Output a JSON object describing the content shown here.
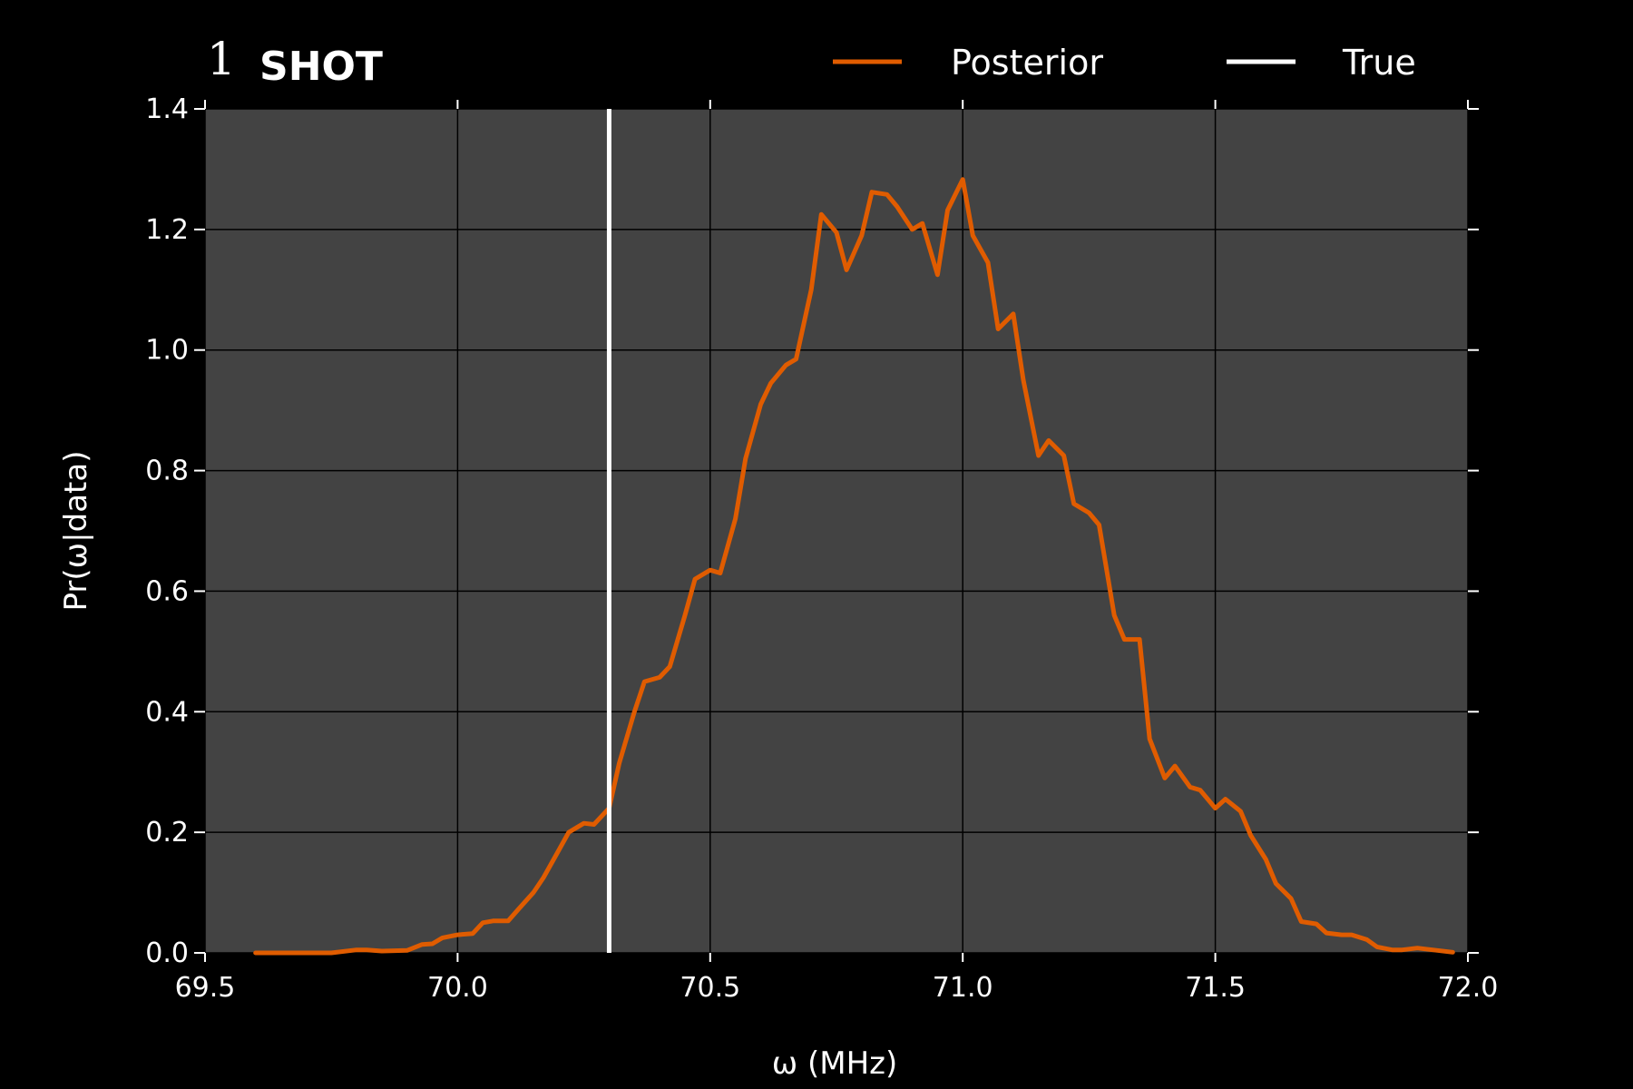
{
  "chart_data": {
    "type": "line",
    "title_number": "1",
    "title_word": "SHOT",
    "xlabel": "ω (MHz)",
    "ylabel": "Pr(ω|data)",
    "xlim": [
      69.5,
      72.0
    ],
    "ylim": [
      0.0,
      1.4
    ],
    "xticks": [
      "69.5",
      "70.0",
      "70.5",
      "71.0",
      "71.5",
      "72.0"
    ],
    "yticks": [
      "0.0",
      "0.2",
      "0.4",
      "0.6",
      "0.8",
      "1.0",
      "1.2",
      "1.4"
    ],
    "grid": true,
    "legend_placement": "top-right",
    "colors": {
      "posterior": "#e05c00",
      "true": "#ffffff",
      "plot_bg": "#434343",
      "figure_bg": "#000000"
    },
    "series": [
      {
        "name": "Posterior",
        "x": [
          69.6,
          69.65,
          69.7,
          69.75,
          69.8,
          69.82,
          69.85,
          69.9,
          69.93,
          69.95,
          69.97,
          70.0,
          70.03,
          70.05,
          70.07,
          70.1,
          70.12,
          70.15,
          70.17,
          70.2,
          70.22,
          70.25,
          70.27,
          70.3,
          70.32,
          70.35,
          70.37,
          70.4,
          70.42,
          70.45,
          70.47,
          70.5,
          70.52,
          70.55,
          70.57,
          70.6,
          70.62,
          70.65,
          70.67,
          70.7,
          70.72,
          70.75,
          70.77,
          70.8,
          70.82,
          70.85,
          70.87,
          70.9,
          70.92,
          70.95,
          70.97,
          71.0,
          71.02,
          71.05,
          71.07,
          71.1,
          71.12,
          71.15,
          71.17,
          71.2,
          71.22,
          71.25,
          71.27,
          71.3,
          71.32,
          71.35,
          71.37,
          71.4,
          71.42,
          71.45,
          71.47,
          71.5,
          71.52,
          71.55,
          71.57,
          71.6,
          71.62,
          71.65,
          71.67,
          71.7,
          71.72,
          71.75,
          71.77,
          71.8,
          71.82,
          71.85,
          71.87,
          71.9,
          71.97
        ],
        "y": [
          0.0,
          0.0,
          0.0,
          0.0,
          0.005,
          0.005,
          0.003,
          0.004,
          0.014,
          0.015,
          0.025,
          0.03,
          0.032,
          0.05,
          0.053,
          0.053,
          0.072,
          0.1,
          0.125,
          0.17,
          0.2,
          0.215,
          0.213,
          0.24,
          0.315,
          0.4,
          0.45,
          0.457,
          0.475,
          0.56,
          0.62,
          0.635,
          0.63,
          0.72,
          0.82,
          0.91,
          0.945,
          0.975,
          0.985,
          1.1,
          1.225,
          1.195,
          1.133,
          1.19,
          1.262,
          1.258,
          1.238,
          1.2,
          1.21,
          1.125,
          1.232,
          1.283,
          1.19,
          1.145,
          1.035,
          1.06,
          0.95,
          0.825,
          0.85,
          0.825,
          0.745,
          0.73,
          0.71,
          0.56,
          0.52,
          0.52,
          0.355,
          0.29,
          0.31,
          0.275,
          0.27,
          0.24,
          0.255,
          0.235,
          0.195,
          0.155,
          0.115,
          0.09,
          0.052,
          0.048,
          0.033,
          0.03,
          0.03,
          0.022,
          0.01,
          0.005,
          0.005,
          0.008,
          0.001
        ]
      },
      {
        "name": "True",
        "vline_x": 70.3
      }
    ]
  }
}
